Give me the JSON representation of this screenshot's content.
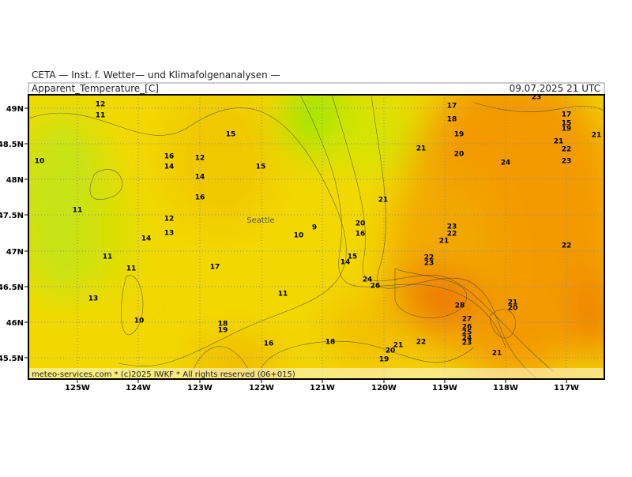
{
  "header": {
    "source": "CETA — Inst. f. Wetter— und Klimafolgenanalysen —",
    "parameter": "Apparent_Temperature_[C]",
    "valid": "09.07.2025 21 UTC"
  },
  "map": {
    "credit": "meteo-services.com * (c)2025 IWKF * All rights reserved (06+015)",
    "city": "Seattle",
    "lon_labels": [
      "125W",
      "124W",
      "123W",
      "122W",
      "121W",
      "120W",
      "119W",
      "118W",
      "117W"
    ],
    "lat_labels": [
      "49N",
      "48.5N",
      "48N",
      "47.5N",
      "47N",
      "46.5N",
      "46N",
      "45.5N"
    ],
    "contour_labels": [
      12,
      11,
      10,
      11,
      11,
      11,
      13,
      10,
      14,
      13,
      12,
      16,
      14,
      12,
      14,
      16,
      15,
      15,
      17,
      18,
      19,
      16,
      11,
      10,
      9,
      18,
      20,
      16,
      14,
      15,
      24,
      26,
      21,
      19,
      20,
      21,
      22,
      21,
      17,
      18,
      19,
      20,
      24,
      23,
      17,
      15,
      19,
      21,
      22,
      23,
      21,
      23,
      22,
      21,
      22,
      23,
      28,
      27,
      26,
      25,
      24,
      23,
      21,
      20,
      21,
      22
    ]
  }
}
